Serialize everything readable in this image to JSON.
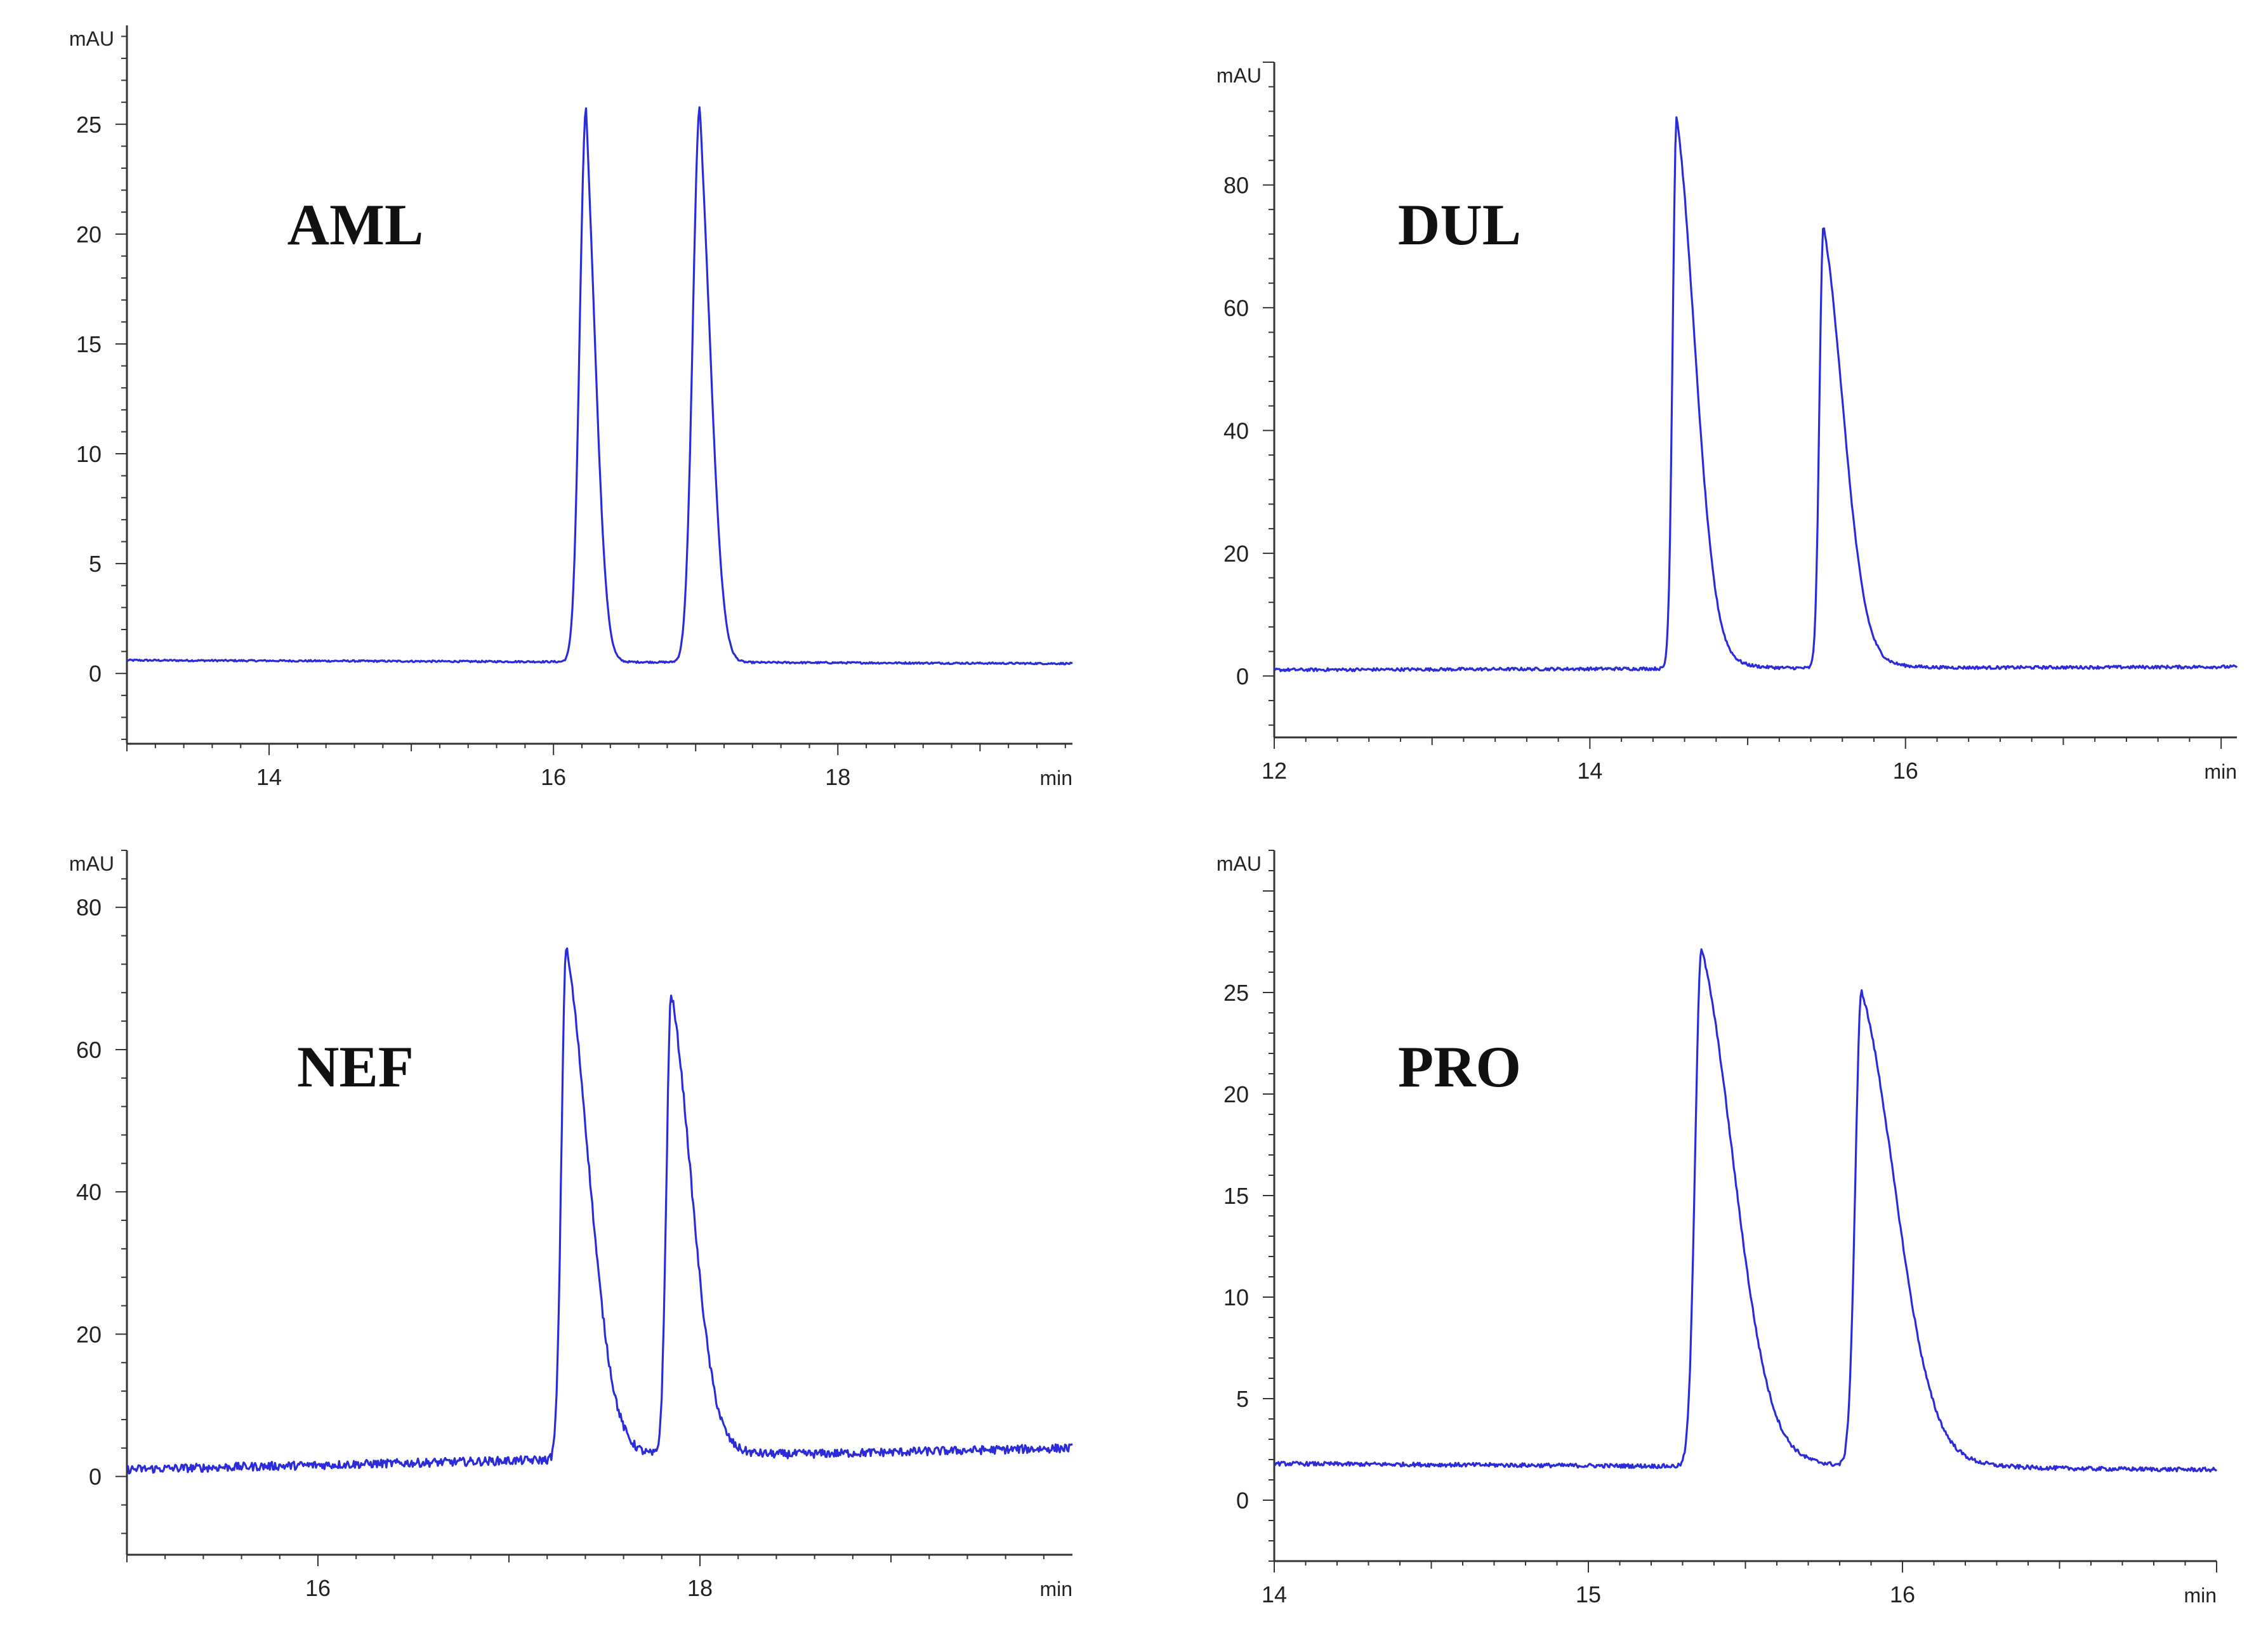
{
  "colors": {
    "trace": "#2b2bd9",
    "axis": "#333333",
    "text": "#222222",
    "background": "#ffffff"
  },
  "chart_data": [
    {
      "type": "line",
      "title": "AML",
      "ylabel": "mAU",
      "xlabel": "min",
      "xlim": [
        13.0,
        19.65
      ],
      "ylim": [
        -3.2,
        29.5
      ],
      "xticks": [
        14,
        16,
        18
      ],
      "yticks": [
        0,
        5,
        10,
        15,
        20,
        25
      ],
      "series": [
        {
          "name": "AML",
          "baseline_start": 0.6,
          "baseline_end": 0.45,
          "noise": 0.04,
          "peaks": [
            {
              "rt": 16.23,
              "height": 25.2,
              "sigma": 0.045,
              "tail": 0.03
            },
            {
              "rt": 17.03,
              "height": 25.3,
              "sigma": 0.05,
              "tail": 0.035
            }
          ]
        }
      ]
    },
    {
      "type": "line",
      "title": "DUL",
      "ylabel": "mAU",
      "xlabel": "min",
      "xlim": [
        12.0,
        18.1
      ],
      "ylim": [
        -10,
        100
      ],
      "xticks": [
        12,
        14,
        16
      ],
      "yticks": [
        0,
        20,
        40,
        60,
        80
      ],
      "series": [
        {
          "name": "DUL",
          "baseline_start": 1.0,
          "baseline_end": 1.5,
          "noise": 0.25,
          "peaks": [
            {
              "rt": 14.55,
              "height": 90.0,
              "sigma": 0.025,
              "tail": 0.1
            },
            {
              "rt": 15.48,
              "height": 72.0,
              "sigma": 0.025,
              "tail": 0.11
            }
          ]
        }
      ]
    },
    {
      "type": "line",
      "title": "NEF",
      "ylabel": "mAU",
      "xlabel": "min",
      "xlim": [
        15.0,
        19.95
      ],
      "ylim": [
        -11,
        88
      ],
      "xticks": [
        16,
        18
      ],
      "yticks": [
        0,
        20,
        40,
        60,
        80
      ],
      "series": [
        {
          "name": "NEF",
          "baseline_start": 1.0,
          "baseline_end": 4.0,
          "noise": 0.6,
          "peaks": [
            {
              "rt": 17.3,
              "height": 72.0,
              "sigma": 0.025,
              "tail": 0.1
            },
            {
              "rt": 17.85,
              "height": 65.0,
              "sigma": 0.025,
              "tail": 0.09
            }
          ]
        }
      ]
    },
    {
      "type": "line",
      "title": "PRO",
      "ylabel": "mAU",
      "xlabel": "min",
      "xlim": [
        14.0,
        17.0
      ],
      "ylim": [
        -3,
        32
      ],
      "xticks": [
        14,
        15,
        16
      ],
      "yticks": [
        0,
        5,
        10,
        15,
        20,
        25
      ],
      "series": [
        {
          "name": "PRO",
          "baseline_start": 1.8,
          "baseline_end": 1.5,
          "noise": 0.1,
          "peaks": [
            {
              "rt": 15.36,
              "height": 25.5,
              "sigma": 0.02,
              "tail": 0.09
            },
            {
              "rt": 15.87,
              "height": 23.4,
              "sigma": 0.02,
              "tail": 0.095
            }
          ]
        }
      ]
    }
  ]
}
